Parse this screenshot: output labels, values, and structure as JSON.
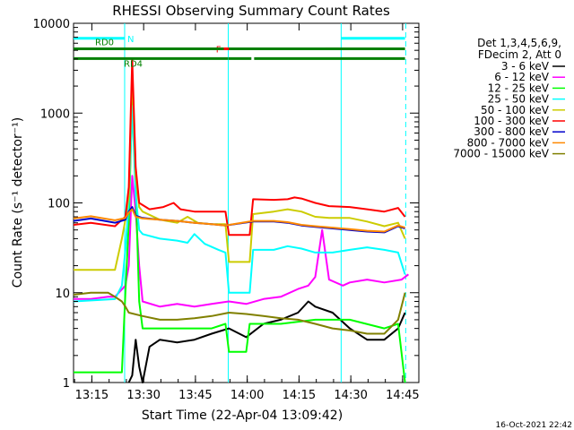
{
  "chart_data": {
    "type": "line",
    "title": "RHESSI Observing Summary Count Rates",
    "xlabel": "Start Time (22-Apr-04 13:09:42)",
    "ylabel": "Count Rate (s⁻¹ detector⁻¹)",
    "x_unit": "minutes after 13:09:42",
    "xlim": [
      0,
      100
    ],
    "ylim": [
      1,
      10000
    ],
    "y_scale": "log",
    "x_ticks": [
      {
        "label": "13:15",
        "t": 5.3
      },
      {
        "label": "13:30",
        "t": 20.3
      },
      {
        "label": "13:45",
        "t": 35.3
      },
      {
        "label": "14:00",
        "t": 50.3
      },
      {
        "label": "14:15",
        "t": 65.3
      },
      {
        "label": "14:30",
        "t": 80.3
      },
      {
        "label": "14:45",
        "t": 95.3
      }
    ],
    "y_ticks": [
      {
        "label": "1",
        "v": 1
      },
      {
        "label": "10",
        "v": 10
      },
      {
        "label": "100",
        "v": 100
      },
      {
        "label": "1000",
        "v": 1000
      },
      {
        "label": "10000",
        "v": 10000
      }
    ],
    "legend_header": [
      "Det 1,3,4,5,6,9,",
      "FDecim 2, Att 0"
    ],
    "legend_placement": "right",
    "series": [
      {
        "name": "3 - 6 keV",
        "color": "#000000",
        "points": [
          [
            16,
            1
          ],
          [
            17,
            1.2
          ],
          [
            18,
            3
          ],
          [
            19,
            1.5
          ],
          [
            20,
            1
          ],
          [
            22,
            2.5
          ],
          [
            25,
            3
          ],
          [
            30,
            2.8
          ],
          [
            35,
            3
          ],
          [
            40,
            3.5
          ],
          [
            45,
            4
          ],
          [
            50,
            3.2
          ],
          [
            55,
            4.5
          ],
          [
            60,
            5
          ],
          [
            65,
            6
          ],
          [
            68,
            8
          ],
          [
            70,
            7
          ],
          [
            75,
            6
          ],
          [
            80,
            4
          ],
          [
            85,
            3
          ],
          [
            90,
            3
          ],
          [
            94,
            4
          ],
          [
            96,
            6
          ]
        ]
      },
      {
        "name": "6 - 12 keV",
        "color": "#ff00ff",
        "points": [
          [
            0,
            8.5
          ],
          [
            5,
            8.5
          ],
          [
            10,
            9
          ],
          [
            12,
            9
          ],
          [
            15,
            12
          ],
          [
            16,
            20
          ],
          [
            17,
            200
          ],
          [
            18,
            80
          ],
          [
            19,
            20
          ],
          [
            20,
            8
          ],
          [
            25,
            7
          ],
          [
            30,
            7.5
          ],
          [
            35,
            7
          ],
          [
            40,
            7.5
          ],
          [
            45,
            8
          ],
          [
            50,
            7.5
          ],
          [
            55,
            8.5
          ],
          [
            60,
            9
          ],
          [
            65,
            11
          ],
          [
            68,
            12
          ],
          [
            70,
            15
          ],
          [
            72,
            50
          ],
          [
            74,
            14
          ],
          [
            78,
            12
          ],
          [
            80,
            13
          ],
          [
            85,
            14
          ],
          [
            90,
            13
          ],
          [
            95,
            14
          ],
          [
            97,
            16
          ]
        ]
      },
      {
        "name": "12 - 25 keV",
        "color": "#00ff00",
        "points": [
          [
            0,
            1.3
          ],
          [
            14,
            1.3
          ],
          [
            15,
            10
          ],
          [
            16,
            60
          ],
          [
            17,
            1500
          ],
          [
            18,
            150
          ],
          [
            19,
            8
          ],
          [
            20,
            4
          ],
          [
            30,
            4
          ],
          [
            40,
            4
          ],
          [
            44,
            4.5
          ],
          [
            45,
            2.2
          ],
          [
            50,
            2.2
          ],
          [
            51,
            4.5
          ],
          [
            60,
            4.5
          ],
          [
            70,
            5
          ],
          [
            80,
            5
          ],
          [
            90,
            4
          ],
          [
            94,
            4.5
          ],
          [
            96,
            1
          ]
        ]
      },
      {
        "name": "25 - 50 keV",
        "color": "#00ffff",
        "points": [
          [
            0,
            8
          ],
          [
            12,
            8.5
          ],
          [
            14,
            12
          ],
          [
            15,
            30
          ],
          [
            16,
            100
          ],
          [
            17,
            1200
          ],
          [
            18,
            120
          ],
          [
            19,
            50
          ],
          [
            20,
            45
          ],
          [
            25,
            40
          ],
          [
            30,
            38
          ],
          [
            33,
            36
          ],
          [
            35,
            45
          ],
          [
            38,
            35
          ],
          [
            42,
            30
          ],
          [
            44,
            28
          ],
          [
            45,
            10
          ],
          [
            51,
            10
          ],
          [
            52,
            30
          ],
          [
            58,
            30
          ],
          [
            62,
            33
          ],
          [
            66,
            31
          ],
          [
            70,
            28
          ],
          [
            75,
            28
          ],
          [
            80,
            30
          ],
          [
            85,
            32
          ],
          [
            90,
            30
          ],
          [
            94,
            28
          ],
          [
            96,
            16
          ]
        ]
      },
      {
        "name": "50 - 100 keV",
        "color": "#cccc00",
        "points": [
          [
            0,
            18
          ],
          [
            12,
            18
          ],
          [
            14,
            40
          ],
          [
            15,
            65
          ],
          [
            16,
            120
          ],
          [
            17,
            3000
          ],
          [
            18,
            200
          ],
          [
            19,
            90
          ],
          [
            20,
            80
          ],
          [
            25,
            65
          ],
          [
            30,
            60
          ],
          [
            33,
            70
          ],
          [
            36,
            60
          ],
          [
            40,
            58
          ],
          [
            44,
            58
          ],
          [
            45,
            22
          ],
          [
            51,
            22
          ],
          [
            52,
            75
          ],
          [
            58,
            80
          ],
          [
            62,
            85
          ],
          [
            66,
            80
          ],
          [
            70,
            70
          ],
          [
            74,
            68
          ],
          [
            80,
            68
          ],
          [
            85,
            62
          ],
          [
            90,
            55
          ],
          [
            94,
            60
          ],
          [
            96,
            40
          ]
        ]
      },
      {
        "name": "100 - 300 keV",
        "color": "#ff0000",
        "points": [
          [
            0,
            57
          ],
          [
            5,
            60
          ],
          [
            12,
            55
          ],
          [
            14,
            65
          ],
          [
            15,
            70
          ],
          [
            16,
            150
          ],
          [
            17,
            4000
          ],
          [
            18,
            250
          ],
          [
            19,
            100
          ],
          [
            22,
            85
          ],
          [
            26,
            90
          ],
          [
            29,
            100
          ],
          [
            31,
            85
          ],
          [
            35,
            80
          ],
          [
            40,
            80
          ],
          [
            44,
            80
          ],
          [
            45,
            44
          ],
          [
            51,
            44
          ],
          [
            52,
            110
          ],
          [
            58,
            108
          ],
          [
            62,
            110
          ],
          [
            64,
            115
          ],
          [
            66,
            112
          ],
          [
            70,
            100
          ],
          [
            74,
            92
          ],
          [
            80,
            90
          ],
          [
            85,
            85
          ],
          [
            90,
            80
          ],
          [
            94,
            88
          ],
          [
            96,
            70
          ]
        ]
      },
      {
        "name": "300 - 800 keV",
        "color": "#0000cc",
        "points": [
          [
            0,
            63
          ],
          [
            5,
            67
          ],
          [
            12,
            60
          ],
          [
            15,
            65
          ],
          [
            16,
            80
          ],
          [
            17,
            90
          ],
          [
            18,
            72
          ],
          [
            20,
            68
          ],
          [
            25,
            65
          ],
          [
            30,
            63
          ],
          [
            35,
            60
          ],
          [
            40,
            58
          ],
          [
            44,
            56
          ],
          [
            52,
            62
          ],
          [
            58,
            62
          ],
          [
            62,
            60
          ],
          [
            66,
            56
          ],
          [
            70,
            54
          ],
          [
            75,
            52
          ],
          [
            80,
            50
          ],
          [
            85,
            48
          ],
          [
            90,
            47
          ],
          [
            94,
            55
          ],
          [
            96,
            52
          ]
        ]
      },
      {
        "name": "800 - 7000 keV",
        "color": "#ff8800",
        "points": [
          [
            0,
            67
          ],
          [
            5,
            71
          ],
          [
            12,
            64
          ],
          [
            15,
            68
          ],
          [
            16,
            78
          ],
          [
            17,
            85
          ],
          [
            18,
            70
          ],
          [
            20,
            67
          ],
          [
            25,
            65
          ],
          [
            30,
            63
          ],
          [
            35,
            60
          ],
          [
            40,
            58
          ],
          [
            44,
            56
          ],
          [
            52,
            63
          ],
          [
            58,
            63
          ],
          [
            62,
            61
          ],
          [
            66,
            57
          ],
          [
            70,
            55
          ],
          [
            75,
            53
          ],
          [
            80,
            51
          ],
          [
            85,
            49
          ],
          [
            90,
            48
          ],
          [
            94,
            56
          ],
          [
            96,
            53
          ]
        ]
      },
      {
        "name": "7000 - 15000 keV",
        "color": "#808000",
        "points": [
          [
            0,
            9.5
          ],
          [
            5,
            10
          ],
          [
            10,
            10
          ],
          [
            12,
            9
          ],
          [
            14,
            8
          ],
          [
            15,
            7
          ],
          [
            16,
            6
          ],
          [
            20,
            5.5
          ],
          [
            25,
            5
          ],
          [
            30,
            5
          ],
          [
            35,
            5.2
          ],
          [
            40,
            5.5
          ],
          [
            45,
            6
          ],
          [
            50,
            5.8
          ],
          [
            55,
            5.5
          ],
          [
            60,
            5.2
          ],
          [
            65,
            5
          ],
          [
            70,
            4.5
          ],
          [
            75,
            4
          ],
          [
            80,
            3.8
          ],
          [
            85,
            3.5
          ],
          [
            90,
            3.5
          ],
          [
            94,
            5
          ],
          [
            96,
            10
          ]
        ]
      }
    ],
    "state_bars": [
      {
        "label": "N",
        "color": "#00ffff",
        "level": 6800,
        "segments": [
          [
            0,
            14.8
          ],
          [
            77.5,
            96
          ]
        ],
        "dashed": false
      },
      {
        "label": "F",
        "color": "#ff0000",
        "level": 5200,
        "segments": [
          [
            43.5,
            49.5
          ]
        ],
        "dashed": true
      },
      {
        "label": "",
        "color": "#ff0000",
        "level": 5200,
        "segments": [
          [
            73,
            77
          ]
        ],
        "dashed": false
      },
      {
        "label": "RD0",
        "color": "#008000",
        "level": 5200,
        "segments": [
          [
            0,
            43.5
          ],
          [
            45,
            96
          ]
        ],
        "dashed": false
      },
      {
        "label": "RD4",
        "color": "#008000",
        "level": 4050,
        "segments": [
          [
            0,
            44.8
          ],
          [
            44.9,
            51.5
          ],
          [
            52.3,
            96
          ]
        ],
        "dashed": false
      }
    ],
    "vertical_lines": [
      {
        "t": 14.8,
        "color": "#00ffff",
        "dashed": false
      },
      {
        "t": 44.8,
        "color": "#00ffff",
        "dashed": false
      },
      {
        "t": 77.5,
        "color": "#00ffff",
        "dashed": false
      },
      {
        "t": 96.2,
        "color": "#00ffff",
        "dashed": true
      }
    ]
  },
  "timestamp": "16-Oct-2021 22:42"
}
